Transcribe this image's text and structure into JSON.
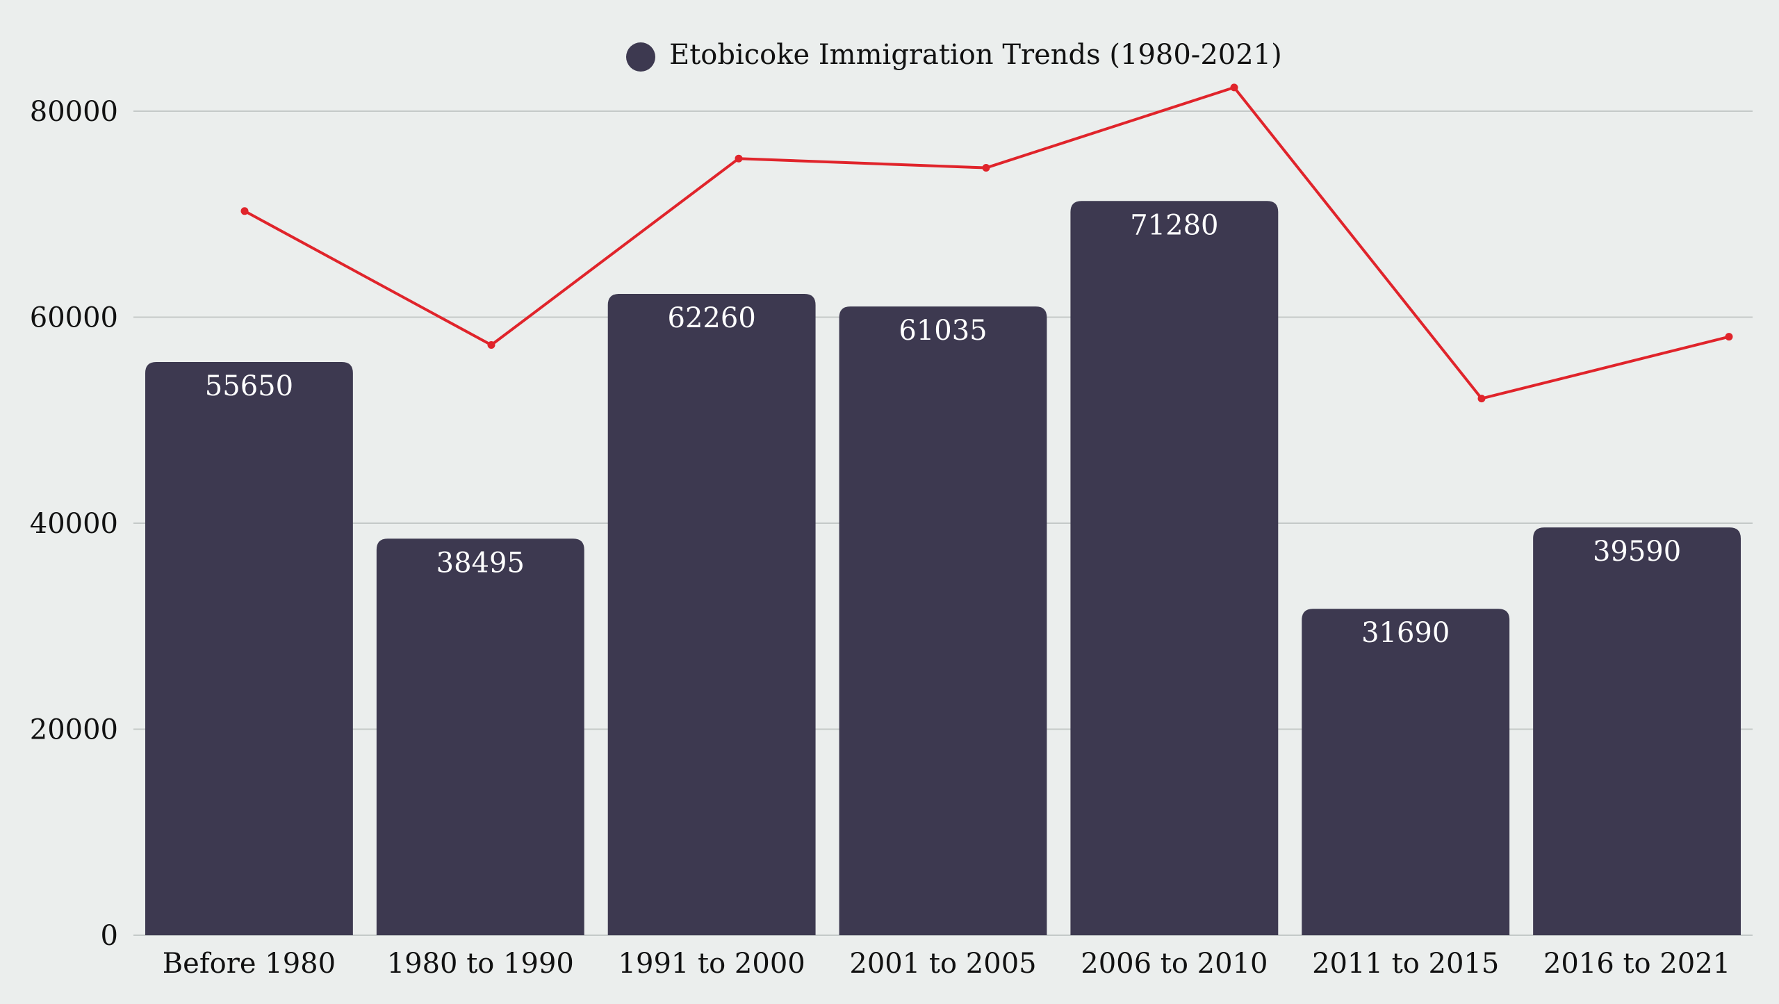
{
  "chart_data": {
    "type": "bar",
    "legend": {
      "position": "top-center",
      "label": "Etobicoke Immigration Trends (1980-2021)"
    },
    "categories": [
      "Before 1980",
      "1980 to 1990",
      "1991 to 2000",
      "2001 to 2005",
      "2006 to 2010",
      "2011 to 2015",
      "2016 to 2021"
    ],
    "series": [
      {
        "name": "Etobicoke Immigration Trends (1980-2021)",
        "type": "bar",
        "values": [
          55650,
          38495,
          62260,
          61035,
          71280,
          31690,
          39590
        ],
        "color": "#3d3950",
        "data_labels": [
          "55650",
          "38495",
          "62260",
          "61035",
          "71280",
          "31690",
          "39590"
        ]
      },
      {
        "type": "line",
        "values": [
          70300,
          57300,
          75400,
          74500,
          82300,
          52100,
          58100
        ],
        "color": "#e0242b"
      }
    ],
    "ylim": [
      0,
      80000
    ],
    "yticks": [
      0,
      20000,
      40000,
      60000,
      80000
    ],
    "ytick_labels": [
      "0",
      "20000",
      "40000",
      "60000",
      "80000"
    ],
    "grid": true,
    "xlabel": "",
    "ylabel": ""
  }
}
